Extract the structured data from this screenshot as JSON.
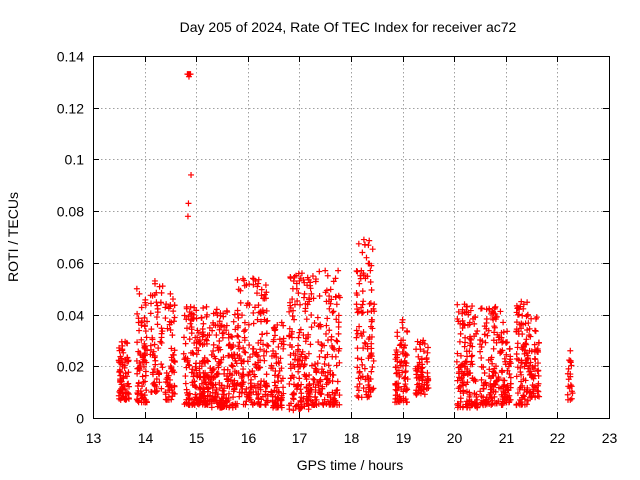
{
  "chart_data": {
    "type": "scatter",
    "title": "Day 205 of 2024, Rate Of TEC Index for receiver ac72",
    "xlabel": "GPS time / hours",
    "ylabel": "ROTI / TECUs",
    "xlim": [
      13,
      23
    ],
    "ylim": [
      0,
      0.14
    ],
    "xticks": [
      13,
      14,
      15,
      16,
      17,
      18,
      19,
      20,
      21,
      22,
      23
    ],
    "yticks": [
      0,
      0.02,
      0.04,
      0.06,
      0.08,
      0.1,
      0.12,
      0.14
    ],
    "marker": "+",
    "color": "#ff0000",
    "grid": true,
    "series": [
      {
        "name": "ROTI",
        "clusters": [
          {
            "x_start": 13.5,
            "x_end": 13.7,
            "y_min": 0.007,
            "y_max": 0.031,
            "n": 70
          },
          {
            "x_start": 13.85,
            "x_end": 14.05,
            "y_min": 0.006,
            "y_max": 0.046,
            "n": 80
          },
          {
            "x_start": 14.1,
            "x_end": 14.35,
            "y_min": 0.01,
            "y_max": 0.053,
            "n": 60
          },
          {
            "x_start": 14.4,
            "x_end": 14.6,
            "y_min": 0.007,
            "y_max": 0.045,
            "n": 60
          },
          {
            "x_start": 14.75,
            "x_end": 15.3,
            "y_min": 0.005,
            "y_max": 0.043,
            "n": 200
          },
          {
            "x_start": 15.3,
            "x_end": 15.8,
            "y_min": 0.004,
            "y_max": 0.042,
            "n": 180
          },
          {
            "x_start": 15.8,
            "x_end": 16.4,
            "y_min": 0.005,
            "y_max": 0.054,
            "n": 180
          },
          {
            "x_start": 16.45,
            "x_end": 16.7,
            "y_min": 0.004,
            "y_max": 0.037,
            "n": 80
          },
          {
            "x_start": 16.8,
            "x_end": 17.2,
            "y_min": 0.003,
            "y_max": 0.057,
            "n": 140
          },
          {
            "x_start": 17.2,
            "x_end": 17.8,
            "y_min": 0.005,
            "y_max": 0.057,
            "n": 160
          },
          {
            "x_start": 18.1,
            "x_end": 18.45,
            "y_min": 0.008,
            "y_max": 0.069,
            "n": 100
          },
          {
            "x_start": 18.85,
            "x_end": 19.1,
            "y_min": 0.006,
            "y_max": 0.038,
            "n": 80
          },
          {
            "x_start": 19.25,
            "x_end": 19.5,
            "y_min": 0.009,
            "y_max": 0.03,
            "n": 70
          },
          {
            "x_start": 20.05,
            "x_end": 20.45,
            "y_min": 0.004,
            "y_max": 0.044,
            "n": 130
          },
          {
            "x_start": 20.5,
            "x_end": 20.95,
            "y_min": 0.005,
            "y_max": 0.043,
            "n": 140
          },
          {
            "x_start": 20.95,
            "x_end": 21.1,
            "y_min": 0.006,
            "y_max": 0.034,
            "n": 50
          },
          {
            "x_start": 21.2,
            "x_end": 21.45,
            "y_min": 0.005,
            "y_max": 0.045,
            "n": 90
          },
          {
            "x_start": 21.45,
            "x_end": 21.65,
            "y_min": 0.008,
            "y_max": 0.039,
            "n": 60
          },
          {
            "x_start": 22.2,
            "x_end": 22.3,
            "y_min": 0.007,
            "y_max": 0.026,
            "n": 14
          }
        ],
        "points": [
          [
            14.83,
            0.133
          ],
          [
            14.85,
            0.133
          ],
          [
            14.87,
            0.133
          ],
          [
            14.89,
            0.133
          ],
          [
            14.86,
            0.132
          ],
          [
            14.9,
            0.094
          ],
          [
            14.85,
            0.083
          ],
          [
            14.84,
            0.078
          ],
          [
            18.25,
            0.069
          ],
          [
            18.27,
            0.067
          ],
          [
            18.22,
            0.064
          ],
          [
            18.3,
            0.062
          ],
          [
            18.2,
            0.057
          ],
          [
            18.24,
            0.056
          ],
          [
            18.28,
            0.054
          ],
          [
            18.18,
            0.055
          ],
          [
            16.1,
            0.054
          ],
          [
            16.15,
            0.053
          ],
          [
            16.2,
            0.052
          ],
          [
            17.0,
            0.053
          ],
          [
            17.05,
            0.056
          ],
          [
            16.95,
            0.05
          ],
          [
            17.1,
            0.048
          ],
          [
            17.5,
            0.057
          ],
          [
            17.55,
            0.055
          ],
          [
            17.75,
            0.057
          ],
          [
            17.7,
            0.054
          ],
          [
            13.85,
            0.05
          ],
          [
            13.9,
            0.048
          ],
          [
            14.2,
            0.053
          ],
          [
            14.35,
            0.051
          ],
          [
            14.5,
            0.048
          ],
          [
            14.55,
            0.046
          ],
          [
            15.2,
            0.043
          ],
          [
            15.4,
            0.042
          ],
          [
            15.6,
            0.041
          ],
          [
            15.75,
            0.04
          ],
          [
            19.0,
            0.038
          ],
          [
            19.4,
            0.03
          ],
          [
            20.2,
            0.044
          ],
          [
            20.25,
            0.043
          ],
          [
            20.8,
            0.043
          ],
          [
            21.3,
            0.045
          ],
          [
            21.35,
            0.044
          ],
          [
            21.6,
            0.039
          ],
          [
            18.45,
            0.044
          ],
          [
            18.4,
            0.038
          ],
          [
            22.25,
            0.026
          ],
          [
            22.25,
            0.022
          ],
          [
            22.25,
            0.017
          ],
          [
            22.25,
            0.016
          ],
          [
            22.22,
            0.015
          ],
          [
            22.2,
            0.009
          ],
          [
            22.25,
            0.007
          ]
        ]
      }
    ]
  }
}
